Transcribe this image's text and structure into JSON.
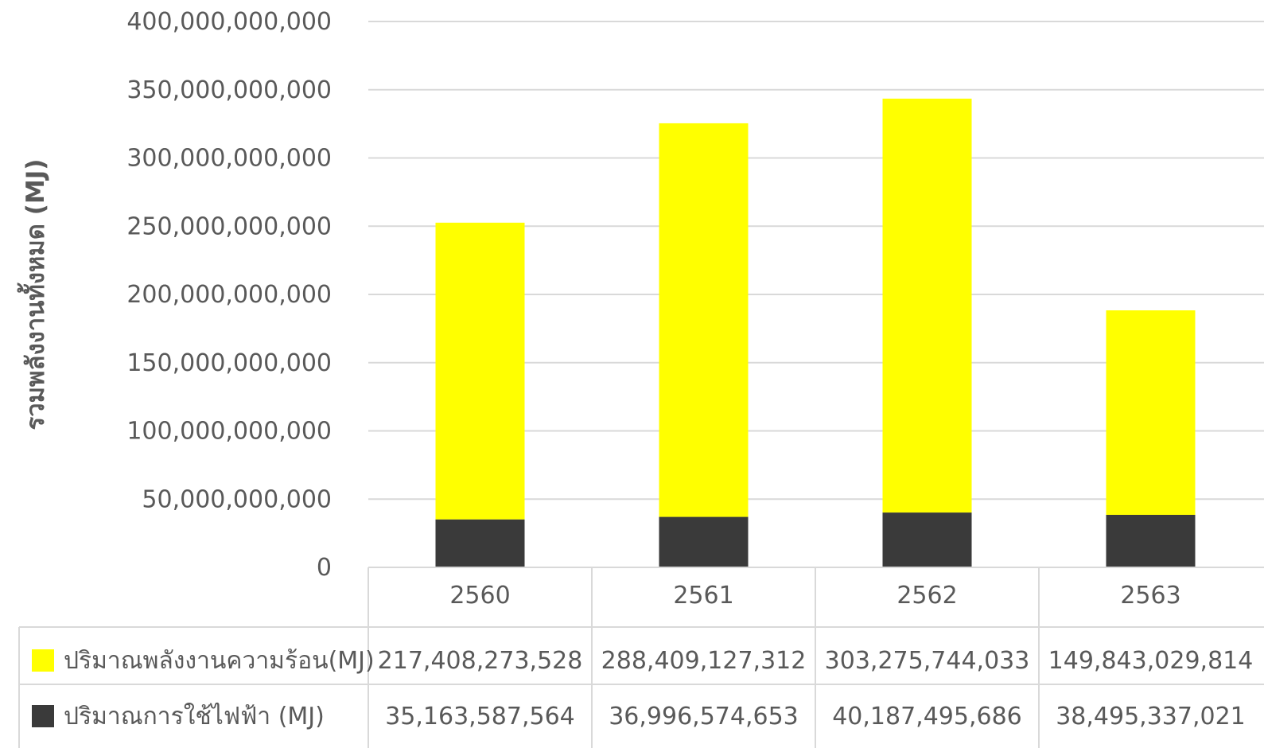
{
  "chart_data": {
    "type": "bar",
    "stacked": true,
    "categories": [
      "2560",
      "2561",
      "2562",
      "2563"
    ],
    "series": [
      {
        "name": "ปริมาณการใช้ไฟฟ้า (MJ)",
        "values": [
          35163587564,
          36996574653,
          40187495686,
          38495337021
        ],
        "value_labels": [
          "35,163,587,564",
          "36,996,574,653",
          "40,187,495,686",
          "38,495,337,021"
        ],
        "color": "#3a3a3a"
      },
      {
        "name": "ปริมาณพลังงานความร้อน(MJ)",
        "values": [
          217408273528,
          288409127312,
          303275744033,
          149843029814
        ],
        "value_labels": [
          "217,408,273,528",
          "288,409,127,312",
          "303,275,744,033",
          "149,843,029,814"
        ],
        "color": "#ffff00"
      }
    ],
    "ylabel": "รวมพลังงานทั้งหมด (MJ)",
    "ylim": [
      0,
      400000000000
    ],
    "yticks": [
      0,
      50000000000,
      100000000000,
      150000000000,
      200000000000,
      250000000000,
      300000000000,
      350000000000,
      400000000000
    ],
    "ytick_labels": [
      "0",
      "50,000,000,000",
      "100,000,000,000",
      "150,000,000,000",
      "200,000,000,000",
      "250,000,000,000",
      "300,000,000,000",
      "350,000,000,000",
      "400,000,000,000"
    ],
    "grid": true,
    "legend": "data-table",
    "colors": {
      "grid": "#d9d9d9",
      "text": "#595959",
      "table_border": "#d9d9d9"
    }
  }
}
